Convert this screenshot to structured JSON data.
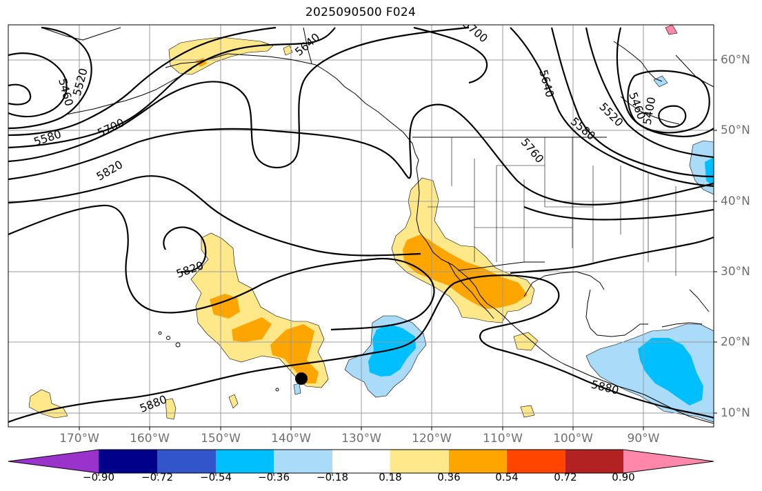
{
  "title": "2025090500 F024",
  "longitude_labels": [
    "170°W",
    "160°W",
    "150°W",
    "140°W",
    "130°W",
    "120°W",
    "110°W",
    "100°W",
    "90°W"
  ],
  "latitude_labels": [
    "60°N",
    "50°N",
    "40°N",
    "30°N",
    "20°N",
    "10°N"
  ],
  "contour_labels": [
    "5460",
    "5520",
    "5580",
    "5700",
    "5820",
    "5640",
    "5700",
    "5640",
    "5520",
    "5460",
    "5400",
    "5580",
    "5760",
    "5820",
    "5880",
    "5880"
  ],
  "colorbar": {
    "tick_labels": [
      "−0.90",
      "−0.72",
      "−0.54",
      "−0.36",
      "−0.18",
      "0.18",
      "0.36",
      "0.54",
      "0.72",
      "0.90"
    ],
    "colors": [
      "#9933cc",
      "#00008b",
      "#3355cc",
      "#00bfff",
      "#aadcfa",
      "#ffffff",
      "#ffe88a",
      "#ffa500",
      "#ff4500",
      "#b22222",
      "#ff88aa"
    ],
    "extend": "both"
  },
  "shading_colors": {
    "light_yellow": "#ffe88a",
    "orange": "#ffa500",
    "light_blue": "#aadcfa",
    "deep_sky_blue": "#00bfff"
  },
  "marker": {
    "type": "black dot",
    "approx_lon": "138°W",
    "approx_lat": "15°N"
  }
}
